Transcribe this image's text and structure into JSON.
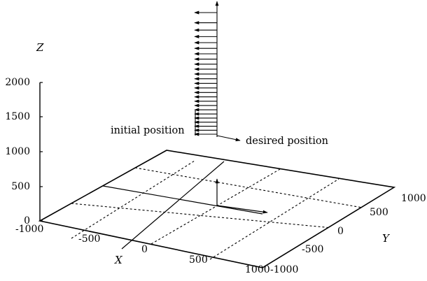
{
  "figure": {
    "z_axis": {
      "title": "Z",
      "ticks": [
        "0",
        "500",
        "1000",
        "1500",
        "2000"
      ]
    },
    "x_axis": {
      "title": "X",
      "ticks": [
        "-1000",
        "-500",
        "0",
        "500",
        "1000"
      ]
    },
    "y_axis": {
      "title": "Y",
      "ticks": [
        "-1000",
        "-500",
        "0",
        "500",
        "1000"
      ]
    },
    "annotations": {
      "initial": "initial position",
      "desired": "desired position"
    },
    "frame_count": 25,
    "colors": {
      "ink": "#000000",
      "background": "#ffffff"
    }
  }
}
